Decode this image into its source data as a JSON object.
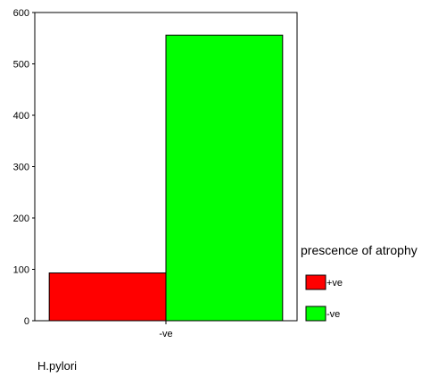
{
  "chart_data": {
    "type": "bar",
    "categories": [
      "-ve"
    ],
    "series": [
      {
        "name": "+ve",
        "values": [
          93
        ],
        "color": "#ff0000"
      },
      {
        "name": "-ve",
        "values": [
          556
        ],
        "color": "#00ff00"
      }
    ],
    "xlabel": "H.pylori",
    "ylabel": "",
    "ylim": [
      0,
      600
    ],
    "yticks": [
      0,
      100,
      200,
      300,
      400,
      500,
      600
    ],
    "grid": false,
    "legend": {
      "title": "prescence of atrophy",
      "placement": "right"
    }
  }
}
